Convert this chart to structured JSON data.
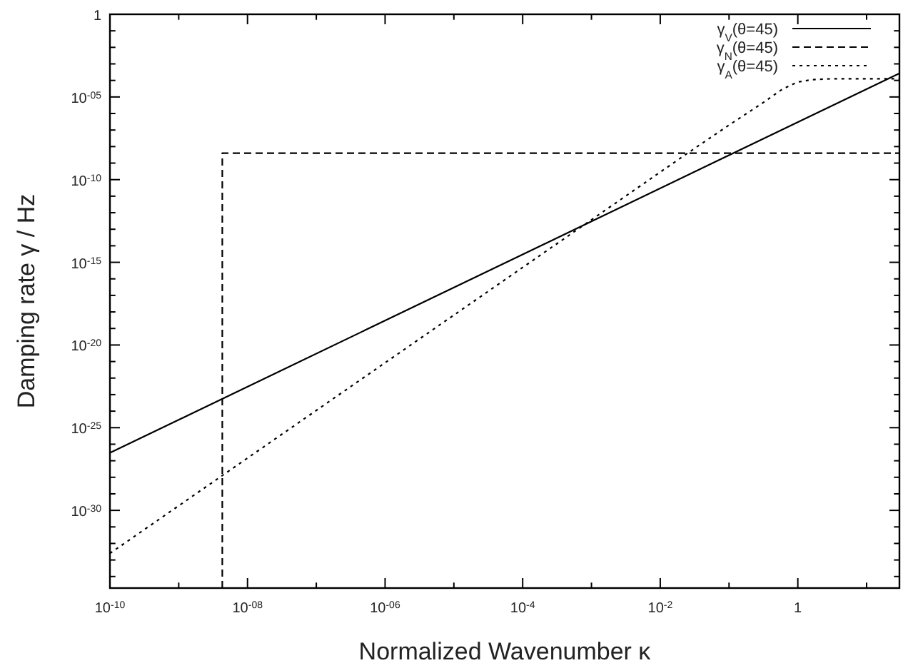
{
  "chart_data": {
    "type": "line",
    "xlabel": "Normalized Wavenumber κ",
    "ylabel": "Damping rate γ / Hz",
    "log": "xy",
    "grid": false,
    "legend": "top right",
    "xlim": [
      1e-10,
      30
    ],
    "ylim": [
      2e-35,
      1
    ],
    "xticks": [
      {
        "value": 1e-10,
        "label": "10$^{-10}$"
      },
      {
        "value": 1e-09,
        "label": null
      },
      {
        "value": 1e-08,
        "label": "10$^{-08}$"
      },
      {
        "value": 1e-07,
        "label": null
      },
      {
        "value": 1e-06,
        "label": "10$^{-06}$"
      },
      {
        "value": 1e-05,
        "label": null
      },
      {
        "value": 0.0001,
        "label": "10$^{-4}$"
      },
      {
        "value": 0.001,
        "label": null
      },
      {
        "value": 0.01,
        "label": "10$^{-2}$"
      },
      {
        "value": 0.1,
        "label": null
      },
      1,
      {
        "value": 10,
        "label": null
      }
    ],
    "yticks": [
      {
        "value": 1e-34,
        "label": null
      },
      {
        "value": 1e-33,
        "label": null
      },
      {
        "value": 1e-32,
        "label": null
      },
      {
        "value": 1e-31,
        "label": null
      },
      {
        "value": 1e-30,
        "label": "10$^{-30}$"
      },
      {
        "value": 1e-29,
        "label": null
      },
      {
        "value": 1e-28,
        "label": null
      },
      {
        "value": 1e-27,
        "label": null
      },
      {
        "value": 1e-26,
        "label": null
      },
      {
        "value": 1e-25,
        "label": "10$^{-25}$"
      },
      {
        "value": 1e-24,
        "label": null
      },
      {
        "value": 1e-23,
        "label": null
      },
      {
        "value": 1e-22,
        "label": null
      },
      {
        "value": 1e-21,
        "label": null
      },
      {
        "value": 1e-20,
        "label": "10$^{-20}$"
      },
      {
        "value": 1e-19,
        "label": null
      },
      {
        "value": 1e-18,
        "label": null
      },
      {
        "value": 1e-17,
        "label": null
      },
      {
        "value": 1e-16,
        "label": null
      },
      {
        "value": 1e-15,
        "label": "10$^{-15}$"
      },
      {
        "value": 1e-14,
        "label": null
      },
      {
        "value": 1e-13,
        "label": null
      },
      {
        "value": 1e-12,
        "label": null
      },
      {
        "value": 1e-11,
        "label": null
      },
      {
        "value": 1e-10,
        "label": "10$^{-10}$"
      },
      {
        "value": 1e-09,
        "label": null
      },
      {
        "value": 1e-08,
        "label": null
      },
      {
        "value": 1e-07,
        "label": null
      },
      {
        "value": 1e-06,
        "label": null
      },
      {
        "value": 1e-05,
        "label": "10$^{-05}$"
      },
      {
        "value": 0.0001,
        "label": null
      },
      {
        "value": 0.001,
        "label": null
      },
      {
        "value": 0.01,
        "label": null
      },
      {
        "value": 0.1,
        "label": null
      },
      1
    ],
    "series": [
      {
        "name": "γ$_{V}$(θ=45)",
        "color": "#000000",
        "line_style": "solid",
        "x": [
          1e-10,
          30
        ],
        "values": [
          3e-27,
          0.00027
        ]
      },
      {
        "name": "γ$_{N}$(θ=45)",
        "color": "#000000",
        "line_style": "dashed",
        "x": [
          4.3e-09,
          4.3e-09,
          30
        ],
        "values": [
          2e-35,
          4e-09,
          4e-09
        ]
      },
      {
        "name": "γ$_{A}$(θ=45)",
        "color": "#000000",
        "line_style": "dotted",
        "x": [
          1e-10,
          0.025,
          0.1,
          0.3,
          0.6,
          1,
          1.6,
          3,
          30
        ],
        "values": [
          2.5e-33,
          4e-09,
          2e-07,
          4e-06,
          3e-05,
          8e-05,
          0.00011,
          0.000125,
          0.000125
        ]
      }
    ]
  }
}
